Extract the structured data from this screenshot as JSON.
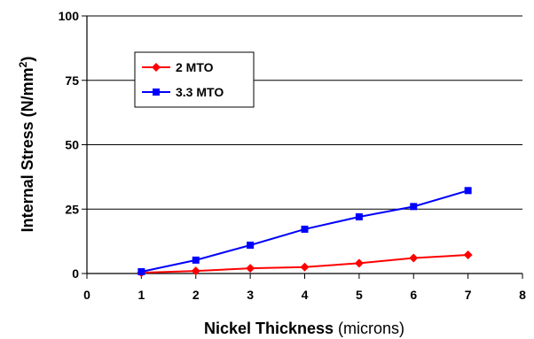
{
  "chart_data": {
    "type": "line",
    "title": "",
    "xlabel": {
      "bold": "Nickel Thickness",
      "rest": " (microns)"
    },
    "ylabel": {
      "base": "Internal Stress (N/mm",
      "sup": "2",
      "close": ")"
    },
    "xlim": [
      0,
      8
    ],
    "ylim": [
      0,
      100
    ],
    "xticks": [
      0,
      1,
      2,
      3,
      4,
      5,
      6,
      7,
      8
    ],
    "yticks": [
      0,
      25,
      50,
      75,
      100
    ],
    "grid": {
      "horizontal": true,
      "vertical": false
    },
    "legend_position": "top-left",
    "series": [
      {
        "name": "2 MTO",
        "color": "#ff0000",
        "marker": "diamond",
        "x": [
          1,
          2,
          3,
          4,
          5,
          6,
          7
        ],
        "y": [
          0.3,
          1,
          2,
          2.5,
          4,
          6,
          7.2
        ]
      },
      {
        "name": "3.3 MTO",
        "color": "#0000ff",
        "marker": "square",
        "x": [
          1,
          2,
          3,
          4,
          5,
          6,
          7
        ],
        "y": [
          0.7,
          5.2,
          11,
          17.2,
          22,
          26,
          32.2
        ]
      }
    ]
  }
}
